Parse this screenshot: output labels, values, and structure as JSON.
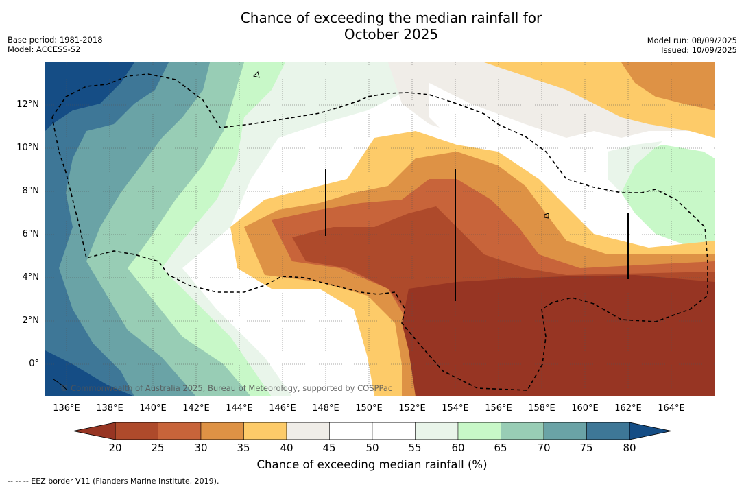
{
  "title_line1": "Chance of exceeding the median rainfall for",
  "title_line2": "October 2025",
  "base_period": "Base period: 1981-2018",
  "model": "Model: ACCESS-S2",
  "model_run": "Model run: 08/09/2025",
  "issued": "Issued: 10/09/2025",
  "credit": "© Commonwealth of Australia 2025, Bureau of Meteorology, supported by COSPPac",
  "lat_labels": [
    "12°N",
    "10°N",
    "8°N",
    "6°N",
    "4°N",
    "2°N",
    "0°"
  ],
  "lon_labels": [
    "136°E",
    "138°E",
    "140°E",
    "142°E",
    "144°E",
    "146°E",
    "148°E",
    "150°E",
    "152°E",
    "154°E",
    "156°E",
    "158°E",
    "160°E",
    "162°E",
    "164°E"
  ],
  "colorbar": {
    "ticks": [
      "20",
      "25",
      "30",
      "35",
      "40",
      "45",
      "50",
      "55",
      "60",
      "65",
      "70",
      "75",
      "80"
    ],
    "colors": [
      "#ae4a2b",
      "#c8643a",
      "#de9245",
      "#fdcb69",
      "#f0ede8",
      "#ffffff",
      "#ffffff",
      "#e9f5ea",
      "#c8f8c8",
      "#98cdb5",
      "#6aa3a6",
      "#3e7797"
    ],
    "under_color": "#973523",
    "over_color": "#154d85",
    "label": "Chance of exceeding median rainfall (%)"
  },
  "footer": "--  --  -- EEZ border V11 (Flanders Marine Institute, 2019)."
}
